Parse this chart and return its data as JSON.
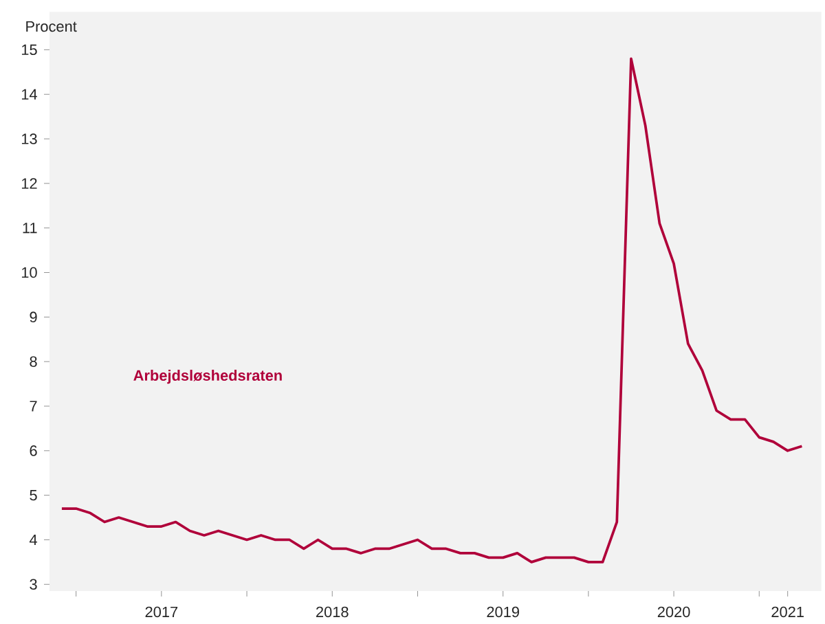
{
  "chart_data": {
    "type": "line",
    "ylabel": "Procent",
    "x": [
      "2016-12",
      "2017-01",
      "2017-02",
      "2017-03",
      "2017-04",
      "2017-05",
      "2017-06",
      "2017-07",
      "2017-08",
      "2017-09",
      "2017-10",
      "2017-11",
      "2017-12",
      "2018-01",
      "2018-02",
      "2018-03",
      "2018-04",
      "2018-05",
      "2018-06",
      "2018-07",
      "2018-08",
      "2018-09",
      "2018-10",
      "2018-11",
      "2018-12",
      "2019-01",
      "2019-02",
      "2019-03",
      "2019-04",
      "2019-05",
      "2019-06",
      "2019-07",
      "2019-08",
      "2019-09",
      "2019-10",
      "2019-11",
      "2019-12",
      "2020-01",
      "2020-02",
      "2020-03",
      "2020-04",
      "2020-05",
      "2020-06",
      "2020-07",
      "2020-08",
      "2020-09",
      "2020-10",
      "2020-11",
      "2020-12",
      "2021-01",
      "2021-02",
      "2021-03",
      "2021-04"
    ],
    "series": [
      {
        "name": "Arbejdsløshedsraten",
        "color": "#b0003a",
        "values": [
          4.7,
          4.7,
          4.6,
          4.4,
          4.5,
          4.4,
          4.3,
          4.3,
          4.4,
          4.2,
          4.1,
          4.2,
          4.1,
          4.0,
          4.1,
          4.0,
          4.0,
          3.8,
          4.0,
          3.8,
          3.8,
          3.7,
          3.8,
          3.8,
          3.9,
          4.0,
          3.8,
          3.8,
          3.7,
          3.7,
          3.6,
          3.6,
          3.7,
          3.5,
          3.6,
          3.6,
          3.6,
          3.5,
          3.5,
          4.4,
          14.8,
          13.3,
          11.1,
          10.2,
          8.4,
          7.8,
          6.9,
          6.7,
          6.7,
          6.3,
          6.2,
          6.0,
          6.1
        ]
      }
    ],
    "xlim": [
      "2016-11-05",
      "2021-05-12"
    ],
    "xticks": [
      {
        "value": "2017-01",
        "label": null
      },
      {
        "value": "2017-07",
        "label": "2017"
      },
      {
        "value": "2018-01",
        "label": null
      },
      {
        "value": "2018-07",
        "label": "2018"
      },
      {
        "value": "2019-01",
        "label": null
      },
      {
        "value": "2019-07",
        "label": "2019"
      },
      {
        "value": "2020-01",
        "label": null
      },
      {
        "value": "2020-07",
        "label": "2020"
      },
      {
        "value": "2021-01",
        "label": null
      },
      {
        "value": "2021-03",
        "label": "2021"
      }
    ],
    "ylim": [
      2.85,
      15.85
    ],
    "yticks": [
      3,
      4,
      5,
      6,
      7,
      8,
      9,
      10,
      11,
      12,
      13,
      14,
      15
    ],
    "grid": false,
    "legend": false,
    "marker": "none",
    "line_style": "solid"
  }
}
